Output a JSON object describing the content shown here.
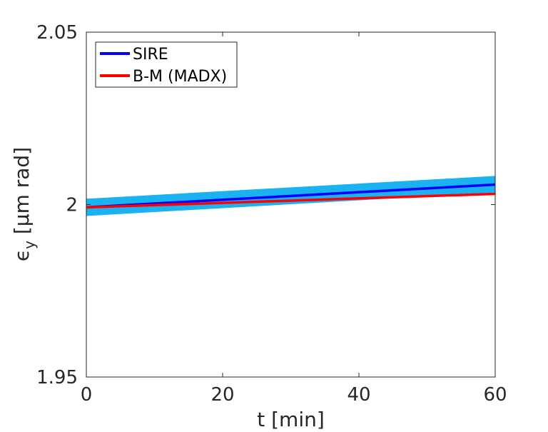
{
  "chart_data": {
    "type": "line",
    "xlabel": "t [min]",
    "ylabel_main": "ϵ",
    "ylabel_sub": "y",
    "ylabel_rest": " [μm rad]",
    "xlim": [
      0,
      60
    ],
    "ylim": [
      1.95,
      2.05
    ],
    "x_ticks": [
      0,
      20,
      40,
      60
    ],
    "x_tick_labels": [
      "0",
      "20",
      "40",
      "60"
    ],
    "y_ticks": [
      1.95,
      2.0,
      2.05
    ],
    "y_tick_labels": [
      "1.95",
      "2",
      "2.05"
    ],
    "grid": false,
    "legend_position": "top-left",
    "band": {
      "x": [
        0,
        60
      ],
      "lower": [
        1.9967,
        2.0035
      ],
      "upper": [
        2.0017,
        2.0083
      ],
      "color": "#1ab2f0"
    },
    "series": [
      {
        "name": "SIRE",
        "color": "#0000ff",
        "x": [
          0,
          20,
          40,
          60
        ],
        "y": [
          1.9992,
          2.0014,
          2.0036,
          2.0058
        ]
      },
      {
        "name": "B-M (MADX)",
        "color": "#ff0000",
        "x": [
          0,
          20,
          40,
          60
        ],
        "y": [
          1.9992,
          2.0005,
          2.0018,
          2.0031
        ]
      }
    ]
  }
}
